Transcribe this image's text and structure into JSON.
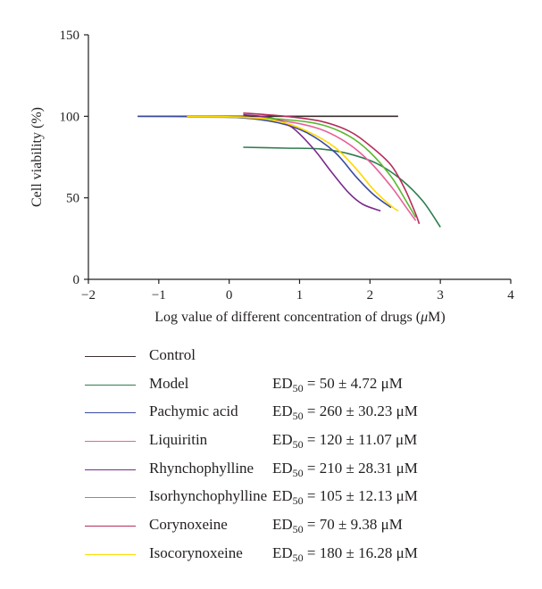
{
  "chart_data": {
    "type": "line",
    "xlabel": "Log value of different concentration of drugs (",
    "xlabel_unit": "μ",
    "xlabel_end": "M)",
    "ylabel": "Cell viability (%)",
    "xlim": [
      -2,
      4
    ],
    "ylim": [
      0,
      150
    ],
    "xticks": [
      -2,
      -1,
      0,
      1,
      2,
      3,
      4
    ],
    "xtick_labels": [
      "−2",
      "−1",
      "0",
      "1",
      "2",
      "3",
      "4"
    ],
    "yticks": [
      0,
      50,
      100,
      150
    ],
    "ytick_labels": [
      "0",
      "50",
      "100",
      "150"
    ],
    "grid": false,
    "legend_position": "bottom",
    "series": [
      {
        "name": "Control",
        "color": "#3b2f2f",
        "ed_prefix": "",
        "ed_value": "",
        "points": [
          [
            -1.3,
            100
          ],
          [
            2.4,
            100
          ]
        ]
      },
      {
        "name": "Model",
        "color": "#2e7d4f",
        "ed_prefix": "ED",
        "ed_value": " = 50 ± 4.72 μM",
        "points": [
          [
            0.2,
            81
          ],
          [
            0.8,
            80.5
          ],
          [
            1.3,
            80
          ],
          [
            1.7,
            77
          ],
          [
            2.1,
            71
          ],
          [
            2.45,
            61
          ],
          [
            2.75,
            48
          ],
          [
            3.0,
            32
          ]
        ]
      },
      {
        "name": "Pachymic acid",
        "color": "#3a4a9f",
        "ed_prefix": "ED",
        "ed_value": " = 260 ± 30.23 μM",
        "points": [
          [
            -1.3,
            100
          ],
          [
            -0.5,
            99.8
          ],
          [
            0.2,
            99
          ],
          [
            0.7,
            96
          ],
          [
            1.1,
            90
          ],
          [
            1.5,
            78
          ],
          [
            1.8,
            63
          ],
          [
            2.05,
            52
          ],
          [
            2.3,
            44
          ]
        ]
      },
      {
        "name": "Liquiritin",
        "color": "#e8609a",
        "ed_prefix": "ED",
        "ed_value": " = 120 ± 11.07 μM",
        "points": [
          [
            -0.6,
            99.5
          ],
          [
            0.2,
            99.2
          ],
          [
            0.8,
            97
          ],
          [
            1.3,
            92
          ],
          [
            1.7,
            83
          ],
          [
            2.0,
            72
          ],
          [
            2.3,
            57
          ],
          [
            2.5,
            45
          ],
          [
            2.65,
            36
          ]
        ]
      },
      {
        "name": "Rhynchophylline",
        "color": "#7a2a8c",
        "ed_prefix": "ED",
        "ed_value": " = 210 ± 28.31 μM",
        "points": [
          [
            0.2,
            101
          ],
          [
            0.6,
            99
          ],
          [
            0.9,
            93
          ],
          [
            1.2,
            80
          ],
          [
            1.45,
            66
          ],
          [
            1.7,
            53
          ],
          [
            1.9,
            46
          ],
          [
            2.15,
            42
          ]
        ]
      },
      {
        "name": "Isorhynchophylline",
        "color": "#5bb830",
        "ed_prefix": "ED",
        "ed_value": " = 105 ± 12.13 μM",
        "points": [
          [
            -0.5,
            99.5
          ],
          [
            0.2,
            99.3
          ],
          [
            0.8,
            98
          ],
          [
            1.3,
            95
          ],
          [
            1.7,
            88
          ],
          [
            2.0,
            78
          ],
          [
            2.3,
            63
          ],
          [
            2.5,
            49
          ],
          [
            2.65,
            38
          ]
        ]
      },
      {
        "name": "Corynoxeine",
        "color": "#b52d5c",
        "ed_prefix": "ED",
        "ed_value": " = 70 ± 9.38 μM",
        "points": [
          [
            0.2,
            102
          ],
          [
            0.8,
            100
          ],
          [
            1.3,
            97
          ],
          [
            1.7,
            91
          ],
          [
            2.0,
            82
          ],
          [
            2.3,
            70
          ],
          [
            2.5,
            55
          ],
          [
            2.65,
            40
          ],
          [
            2.7,
            34
          ]
        ]
      },
      {
        "name": "Isocorynoxeine",
        "color": "#ffd900",
        "ed_prefix": "ED",
        "ed_value": " = 180 ± 16.28 μM",
        "points": [
          [
            -0.6,
            99.8
          ],
          [
            0.2,
            99.5
          ],
          [
            0.7,
            97
          ],
          [
            1.1,
            91
          ],
          [
            1.5,
            81
          ],
          [
            1.8,
            68
          ],
          [
            2.05,
            55
          ],
          [
            2.3,
            45
          ],
          [
            2.4,
            42
          ]
        ]
      }
    ]
  }
}
